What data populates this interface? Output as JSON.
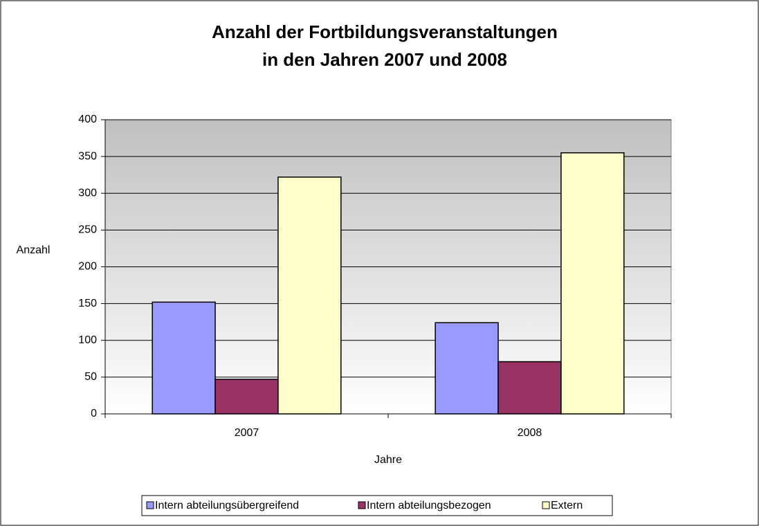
{
  "chart_data": {
    "type": "bar",
    "title": [
      "Anzahl der Fortbildungsveranstaltungen",
      "in den Jahren 2007 und 2008"
    ],
    "x_label": "Jahre",
    "y_label": "Anzahl",
    "categories": [
      "2007",
      "2008"
    ],
    "series": [
      {
        "name": "Intern abteilungsübergreifend",
        "color": "#9999ff",
        "values": [
          152,
          124
        ]
      },
      {
        "name": "Intern abteilungsbezogen",
        "color": "#993366",
        "values": [
          47,
          71
        ]
      },
      {
        "name": "Extern",
        "color": "#ffffcc",
        "values": [
          322,
          355
        ]
      }
    ],
    "ylim": [
      0,
      400
    ],
    "yticks": [
      0,
      50,
      100,
      150,
      200,
      250,
      300,
      350,
      400
    ],
    "grid": true,
    "legend": "bottom"
  }
}
